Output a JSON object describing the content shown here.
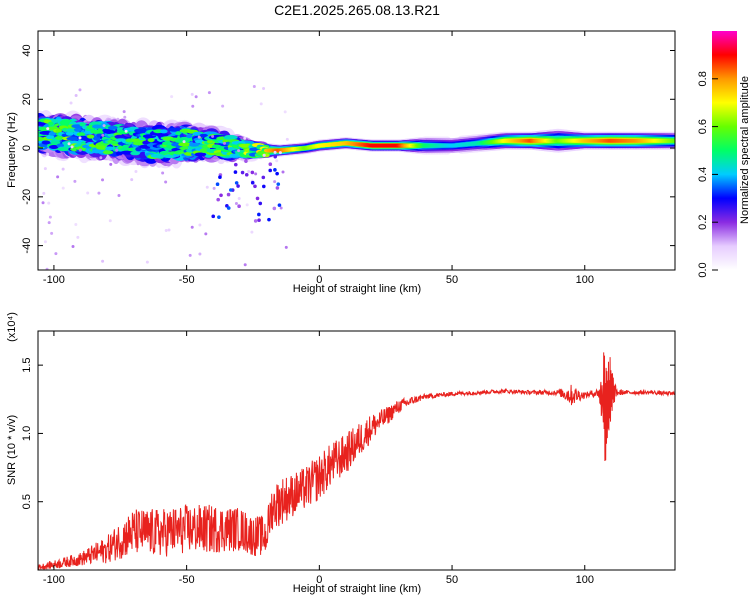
{
  "title": "C2E1.2025.265.08.13.R21",
  "chart_data": [
    {
      "type": "heatmap",
      "name": "spectrogram",
      "xlabel": "Height of straight line (km)",
      "ylabel": "Frequency (Hz)",
      "xlim": [
        -106,
        134
      ],
      "ylim": [
        -50,
        48
      ],
      "xticks": [
        -100,
        -50,
        0,
        50,
        100
      ],
      "xtick_labels": [
        "-100",
        "-50",
        "0",
        "50",
        "100"
      ],
      "yticks": [
        -40,
        -20,
        0,
        20,
        40
      ],
      "ytick_labels": [
        "-40",
        "-20",
        "0",
        "20",
        "40"
      ],
      "colorbar": {
        "label": "Normalized spectral amplitude",
        "range": [
          0,
          1
        ],
        "ticks": [
          0,
          0.2,
          0.4,
          0.6,
          0.8
        ],
        "tick_labels": [
          "0.0",
          "0.2",
          "0.4",
          "0.6",
          "0.8"
        ],
        "colors": [
          "#ffffff",
          "#e6ccff",
          "#8a2be2",
          "#0000ff",
          "#00ccff",
          "#00ff66",
          "#66ff00",
          "#ffff00",
          "#ff9900",
          "#ff0000",
          "#ff00cc"
        ]
      },
      "ridge": [
        {
          "x": -104,
          "freq": 6,
          "amp": 0.55,
          "spread": 7
        },
        {
          "x": -95,
          "freq": 5,
          "amp": 0.6,
          "spread": 7
        },
        {
          "x": -85,
          "freq": 4,
          "amp": 0.55,
          "spread": 7
        },
        {
          "x": -75,
          "freq": 3,
          "amp": 0.55,
          "spread": 7
        },
        {
          "x": -65,
          "freq": 2,
          "amp": 0.55,
          "spread": 7
        },
        {
          "x": -55,
          "freq": 2,
          "amp": 0.55,
          "spread": 7
        },
        {
          "x": -45,
          "freq": 2,
          "amp": 0.55,
          "spread": 6
        },
        {
          "x": -35,
          "freq": 1,
          "amp": 0.6,
          "spread": 5
        },
        {
          "x": -25,
          "freq": -1,
          "amp": 0.65,
          "spread": 3
        },
        {
          "x": -15,
          "freq": -1,
          "amp": 0.85,
          "spread": 2
        },
        {
          "x": -5,
          "freq": 0,
          "amp": 0.6,
          "spread": 2
        },
        {
          "x": 0,
          "freq": 1,
          "amp": 0.7,
          "spread": 2
        },
        {
          "x": 10,
          "freq": 2,
          "amp": 0.75,
          "spread": 2
        },
        {
          "x": 20,
          "freq": 1,
          "amp": 0.9,
          "spread": 2
        },
        {
          "x": 30,
          "freq": 1,
          "amp": 0.9,
          "spread": 2
        },
        {
          "x": 40,
          "freq": 1,
          "amp": 0.5,
          "spread": 3
        },
        {
          "x": 50,
          "freq": 1,
          "amp": 0.4,
          "spread": 3
        },
        {
          "x": 60,
          "freq": 2,
          "amp": 0.45,
          "spread": 3
        },
        {
          "x": 70,
          "freq": 3,
          "amp": 0.7,
          "spread": 3
        },
        {
          "x": 80,
          "freq": 3,
          "amp": 0.85,
          "spread": 3
        },
        {
          "x": 90,
          "freq": 3,
          "amp": 0.6,
          "spread": 4
        },
        {
          "x": 100,
          "freq": 3,
          "amp": 0.75,
          "spread": 3
        },
        {
          "x": 110,
          "freq": 3,
          "amp": 0.85,
          "spread": 3
        },
        {
          "x": 120,
          "freq": 3,
          "amp": 0.8,
          "spread": 3
        },
        {
          "x": 134,
          "freq": 3,
          "amp": 0.6,
          "spread": 3
        }
      ]
    },
    {
      "type": "line",
      "name": "snr",
      "xlabel": "Height of straight line (km)",
      "ylabel": "SNR (10 * v/v)",
      "scale_label": "(x10⁴)",
      "xlim": [
        -106,
        134
      ],
      "ylim": [
        0,
        1.75
      ],
      "xticks": [
        -100,
        -50,
        0,
        50,
        100
      ],
      "xtick_labels": [
        "-100",
        "-50",
        "0",
        "50",
        "100"
      ],
      "yticks": [
        0.5,
        1.0,
        1.5
      ],
      "ytick_labels": [
        "0.5",
        "1.0",
        "1.5"
      ],
      "color": "#e8221e",
      "series": [
        {
          "name": "SNR",
          "x": [
            -106,
            -100,
            -90,
            -80,
            -75,
            -70,
            -60,
            -50,
            -40,
            -30,
            -25,
            -20,
            -18,
            -15,
            -10,
            -5,
            0,
            5,
            10,
            15,
            20,
            25,
            30,
            35,
            40,
            50,
            60,
            70,
            80,
            90,
            95,
            100,
            105,
            108,
            110,
            112,
            115,
            120,
            125,
            134
          ],
          "y": [
            0.02,
            0.04,
            0.08,
            0.15,
            0.22,
            0.28,
            0.27,
            0.3,
            0.3,
            0.3,
            0.25,
            0.25,
            0.45,
            0.5,
            0.55,
            0.6,
            0.68,
            0.78,
            0.85,
            0.95,
            1.05,
            1.12,
            1.2,
            1.24,
            1.27,
            1.29,
            1.3,
            1.31,
            1.3,
            1.3,
            1.28,
            1.28,
            1.3,
            1.2,
            1.3,
            1.3,
            1.3,
            1.3,
            1.3,
            1.29
          ],
          "noise": [
            0.02,
            0.03,
            0.05,
            0.1,
            0.14,
            0.17,
            0.18,
            0.18,
            0.18,
            0.16,
            0.15,
            0.15,
            0.16,
            0.18,
            0.16,
            0.16,
            0.17,
            0.16,
            0.15,
            0.13,
            0.1,
            0.07,
            0.05,
            0.03,
            0.02,
            0.015,
            0.015,
            0.015,
            0.015,
            0.02,
            0.08,
            0.02,
            0.03,
            0.4,
            0.15,
            0.03,
            0.015,
            0.015,
            0.015,
            0.015
          ]
        }
      ]
    }
  ]
}
